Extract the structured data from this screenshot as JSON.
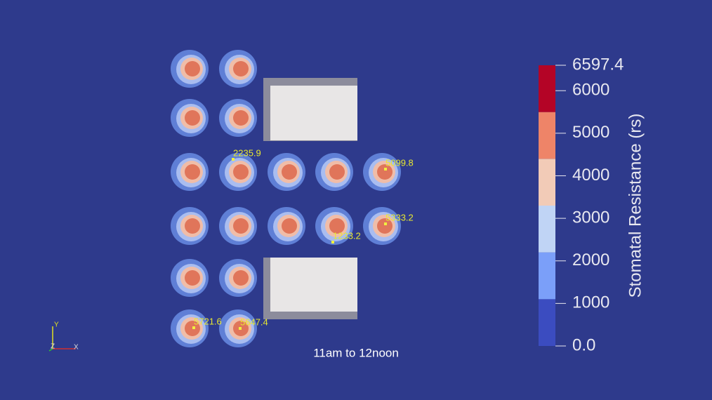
{
  "caption": "11am to 12noon",
  "probes": [
    {
      "label": 2235.9
    },
    {
      "label": 5099.8
    },
    {
      "label": 5333.2
    },
    {
      "label": 1233.2
    },
    {
      "label": 5721.6
    },
    {
      "label": 5647.4
    }
  ],
  "axes_widget": {
    "y": "Y",
    "z": "Z",
    "x": "X"
  },
  "colorbar": {
    "title": "Stomatal Resistance (rs)",
    "range": [
      0,
      6597.4
    ],
    "ticks": [
      {
        "value": 0,
        "label": "0.0"
      },
      1000,
      2000,
      3000,
      4000,
      5000,
      6000,
      6597.4
    ],
    "colors": [
      "#3b4cc0",
      "#7b9ff9",
      "#c0d4f5",
      "#f2cbb7",
      "#ee8468",
      "#b40426"
    ]
  }
}
